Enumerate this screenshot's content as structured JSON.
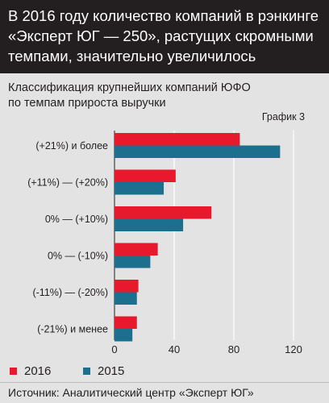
{
  "header": {
    "title": "В 2016 году количество компаний в рэнкинге «Эксперт ЮГ — 250», растущих скромными темпами, значительно увеличилось"
  },
  "subtitle": "Классификация крупнейших компаний ЮФО по темпам прироста выручки",
  "graph_label": "График 3",
  "source": "Источник: Аналитический центр «Эксперт ЮГ»",
  "colors": {
    "s2016": "#e8192c",
    "s2015": "#1d6f8e"
  },
  "chart_data": {
    "type": "bar",
    "orientation": "horizontal",
    "categories": [
      "(+21%) и более",
      "(+11%) — (+20%)",
      "0% — (+10%)",
      "0% — (-10%)",
      "(-11%) — (-20%)",
      "(-21%) и менее"
    ],
    "series": [
      {
        "name": "2016",
        "values": [
          84,
          41,
          65,
          29,
          16,
          15
        ]
      },
      {
        "name": "2015",
        "values": [
          111,
          33,
          46,
          24,
          15,
          12
        ]
      }
    ],
    "xlim": [
      0,
      120
    ],
    "xticks": [
      0,
      40,
      80,
      120
    ],
    "grid": true,
    "legend": "bottom-left"
  }
}
